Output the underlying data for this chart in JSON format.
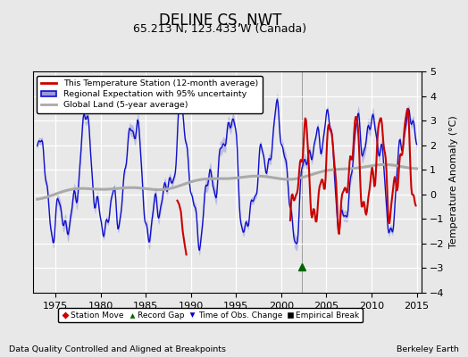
{
  "title": "DELINE CS, NWT",
  "subtitle": "65.213 N, 123.433 W (Canada)",
  "ylabel": "Temperature Anomaly (°C)",
  "xlabel_left": "Data Quality Controlled and Aligned at Breakpoints",
  "xlabel_right": "Berkeley Earth",
  "xlim": [
    1972.5,
    2015.5
  ],
  "ylim": [
    -4,
    5
  ],
  "yticks": [
    -4,
    -3,
    -2,
    -1,
    0,
    1,
    2,
    3,
    4,
    5
  ],
  "xticks": [
    1975,
    1980,
    1985,
    1990,
    1995,
    2000,
    2005,
    2010,
    2015
  ],
  "bg_color": "#e8e8e8",
  "plot_bg_color": "#e8e8e8",
  "grid_color": "white",
  "red_line_color": "#cc0000",
  "blue_line_color": "#1010cc",
  "blue_fill_color": "#9999dd",
  "gray_line_color": "#aaaaaa",
  "legend_items": [
    "This Temperature Station (12-month average)",
    "Regional Expectation with 95% uncertainty",
    "Global Land (5-year average)"
  ],
  "record_gap_x": 2002.3,
  "record_gap_y": -2.95,
  "time_obs_line_x": 2002.3,
  "title_fontsize": 12,
  "subtitle_fontsize": 9,
  "tick_fontsize": 8,
  "ylabel_fontsize": 8
}
